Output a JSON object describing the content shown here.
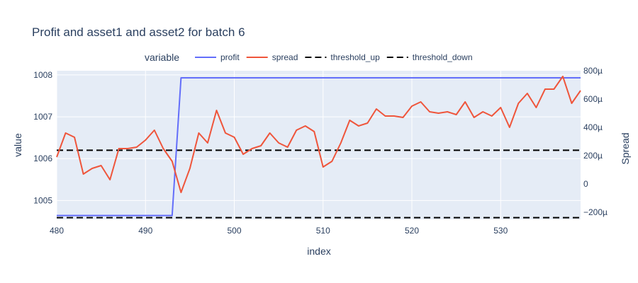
{
  "chart_data": {
    "type": "line",
    "title": "Profit and asset1 and asset2 for batch 6",
    "xlabel": "index",
    "ylabel": "value",
    "y2label": "Spread",
    "xlim": [
      480,
      539
    ],
    "ylim": [
      1004.55,
      1008.1
    ],
    "y2lim": [
      -0.00025,
      0.0008
    ],
    "x_ticks": [
      480,
      490,
      500,
      510,
      520,
      530
    ],
    "y_ticks": [
      1005,
      1006,
      1007,
      1008
    ],
    "y2_ticks": [
      {
        "v": -0.0002,
        "label": "−200µ"
      },
      {
        "v": 0,
        "label": "0"
      },
      {
        "v": 0.0002,
        "label": "200µ"
      },
      {
        "v": 0.0004,
        "label": "400µ"
      },
      {
        "v": 0.0006,
        "label": "600µ"
      },
      {
        "v": 0.0008,
        "label": "800µ"
      }
    ],
    "legend": {
      "title": "variable",
      "placement": "top-center"
    },
    "grid": true,
    "series": [
      {
        "name": "profit",
        "axis": "y",
        "color": "#636efa",
        "dash": "solid",
        "x": [
          480,
          481,
          482,
          483,
          484,
          485,
          486,
          487,
          488,
          489,
          490,
          491,
          492,
          493,
          494,
          539
        ],
        "values": [
          1004.64,
          1004.64,
          1004.64,
          1004.64,
          1004.64,
          1004.64,
          1004.64,
          1004.64,
          1004.64,
          1004.64,
          1004.64,
          1004.64,
          1004.64,
          1004.64,
          1007.93,
          1007.93
        ]
      },
      {
        "name": "spread",
        "axis": "y2",
        "color": "#ef553b",
        "dash": "solid",
        "x": [
          480,
          481,
          482,
          483,
          484,
          485,
          486,
          487,
          488,
          489,
          490,
          491,
          492,
          493,
          494,
          495,
          496,
          497,
          498,
          499,
          500,
          501,
          502,
          503,
          504,
          505,
          506,
          507,
          508,
          509,
          510,
          511,
          512,
          513,
          514,
          515,
          516,
          517,
          518,
          519,
          520,
          521,
          522,
          523,
          524,
          525,
          526,
          527,
          528,
          529,
          530,
          531,
          532,
          533,
          534,
          535,
          536,
          537,
          538,
          539
        ],
        "values": [
          0.00019,
          0.00036,
          0.00033,
          7e-05,
          0.00011,
          0.00013,
          3e-05,
          0.00025,
          0.00025,
          0.00026,
          0.00031,
          0.00038,
          0.00025,
          0.00016,
          -6e-05,
          0.00011,
          0.00036,
          0.00029,
          0.00052,
          0.00036,
          0.00033,
          0.00021,
          0.00025,
          0.00027,
          0.00036,
          0.00029,
          0.00026,
          0.00038,
          0.00041,
          0.00037,
          0.00012,
          0.00016,
          0.00029,
          0.00045,
          0.00041,
          0.00043,
          0.00053,
          0.00048,
          0.00048,
          0.00047,
          0.00055,
          0.00058,
          0.00051,
          0.0005,
          0.00051,
          0.00049,
          0.00058,
          0.00047,
          0.00051,
          0.00048,
          0.00054,
          0.0004,
          0.00057,
          0.00064,
          0.00054,
          0.00067,
          0.00067,
          0.00076,
          0.00057,
          0.00066
        ]
      },
      {
        "name": "threshold_up",
        "axis": "y2",
        "color": "#000000",
        "dash": "dash",
        "x": [
          480,
          539
        ],
        "values": [
          0.000238,
          0.000238
        ]
      },
      {
        "name": "threshold_down",
        "axis": "y2",
        "color": "#000000",
        "dash": "dash",
        "x": [
          480,
          539
        ],
        "values": [
          -0.000238,
          -0.000238
        ]
      }
    ]
  }
}
